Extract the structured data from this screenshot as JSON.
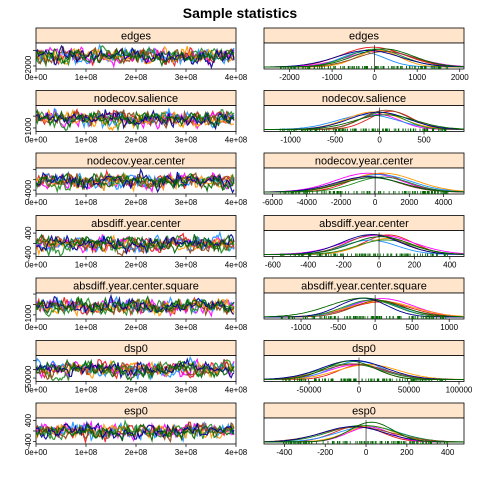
{
  "title": "Sample statistics",
  "colors": {
    "strip": "#ffe5cc",
    "series": [
      "#e41a1c",
      "#ff00ff",
      "#1e90ff",
      "#ff9900",
      "#228b22",
      "#8b4513",
      "#00008b",
      "#006400"
    ]
  },
  "chart_data": [
    {
      "type": "line",
      "panel": "trace",
      "title": "edges",
      "xlim": [
        0,
        400000000
      ],
      "xticks": [
        "0e+00",
        "1e+08",
        "2e+08",
        "3e+08",
        "4e+08"
      ],
      "ylim": [
        -2400,
        1000
      ],
      "yticks": [
        "-2000"
      ]
    },
    {
      "type": "line",
      "panel": "density",
      "title": "edges",
      "xlim": [
        -2600,
        2100
      ],
      "xticks": [
        "-2000",
        "-1000",
        "0",
        "1000",
        "2000"
      ]
    },
    {
      "type": "line",
      "panel": "trace",
      "title": "nodecov.salience",
      "xlim": [
        0,
        400000000
      ],
      "xticks": [
        "0e+00",
        "1e+08",
        "2e+08",
        "3e+08",
        "4e+08"
      ],
      "ylim": [
        -1300,
        900
      ],
      "yticks": [
        "-1000"
      ]
    },
    {
      "type": "line",
      "panel": "density",
      "title": "nodecov.salience",
      "xlim": [
        -1300,
        950
      ],
      "xticks": [
        "-1000",
        "-500",
        "0",
        "500"
      ]
    },
    {
      "type": "line",
      "panel": "trace",
      "title": "nodecov.year.center",
      "xlim": [
        0,
        400000000
      ],
      "xticks": [
        "0e+00",
        "1e+08",
        "2e+08",
        "3e+08",
        "4e+08"
      ],
      "ylim": [
        -5500,
        4500
      ],
      "yticks": [
        "-4000"
      ]
    },
    {
      "type": "line",
      "panel": "density",
      "title": "nodecov.year.center",
      "xlim": [
        -6500,
        5200
      ],
      "xticks": [
        "-6000",
        "-4000",
        "-2000",
        "0",
        "2000",
        "4000"
      ]
    },
    {
      "type": "line",
      "panel": "trace",
      "title": "absdiff.year.center",
      "xlim": [
        0,
        400000000
      ],
      "xticks": [
        "0e+00",
        "1e+08",
        "2e+08",
        "3e+08",
        "4e+08"
      ],
      "ylim": [
        -500,
        500
      ],
      "yticks": [
        "-400",
        "400"
      ]
    },
    {
      "type": "line",
      "panel": "density",
      "title": "absdiff.year.center",
      "xlim": [
        -650,
        480
      ],
      "xticks": [
        "-600",
        "-400",
        "-200",
        "0",
        "200",
        "400"
      ]
    },
    {
      "type": "line",
      "panel": "trace",
      "title": "absdiff.year.center.square",
      "xlim": [
        0,
        400000000
      ],
      "xticks": [
        "0e+00",
        "1e+08",
        "2e+08",
        "3e+08",
        "4e+08"
      ],
      "ylim": [
        -1400,
        1100
      ],
      "yticks": [
        "-1000"
      ]
    },
    {
      "type": "line",
      "panel": "density",
      "title": "absdiff.year.center.square",
      "xlim": [
        -1500,
        1200
      ],
      "xticks": [
        "-1000",
        "-500",
        "0",
        "500",
        "1000"
      ]
    },
    {
      "type": "line",
      "panel": "trace",
      "title": "dsp0",
      "xlim": [
        0,
        400000000
      ],
      "xticks": [
        "0e+00",
        "1e+08",
        "2e+08",
        "3e+08",
        "4e+08"
      ],
      "ylim": [
        -70000,
        80000
      ],
      "yticks": [
        "-50000"
      ]
    },
    {
      "type": "line",
      "panel": "density",
      "title": "dsp0",
      "xlim": [
        -95000,
        105000
      ],
      "xticks": [
        "-50000",
        "0",
        "50000",
        "100000"
      ]
    },
    {
      "type": "line",
      "panel": "trace",
      "title": "esp0",
      "xlim": [
        0,
        400000000
      ],
      "xticks": [
        "0e+00",
        "1e+08",
        "2e+08",
        "3e+08",
        "4e+08"
      ],
      "ylim": [
        -500,
        500
      ],
      "yticks": [
        "-400",
        "400"
      ]
    },
    {
      "type": "line",
      "panel": "density",
      "title": "esp0",
      "xlim": [
        -500,
        480
      ],
      "xticks": [
        "-400",
        "-200",
        "0",
        "200",
        "400"
      ]
    }
  ]
}
